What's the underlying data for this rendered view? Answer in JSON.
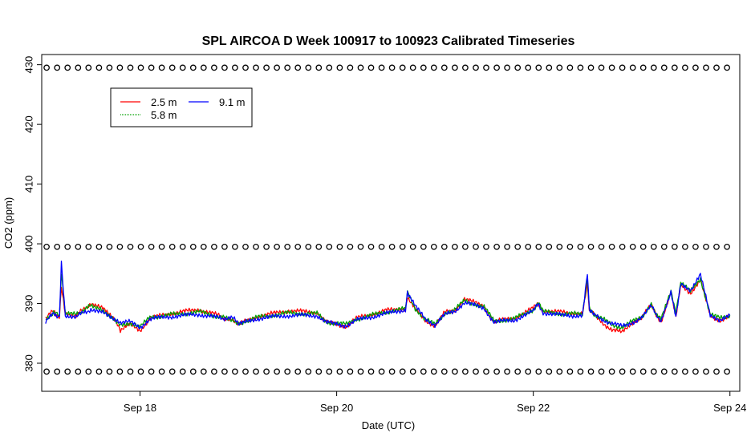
{
  "chart_data": {
    "type": "line",
    "title": "SPL AIRCOA D  Week 100917 to 100923  Calibrated Timeseries",
    "xlabel": "Date (UTC)",
    "ylabel": "CO2 (ppm)",
    "xlim": [
      17.0,
      24.1
    ],
    "ylim": [
      375.3,
      431.7
    ],
    "x_ticks": [
      {
        "value": 18,
        "label": "Sep 18"
      },
      {
        "value": 20,
        "label": "Sep 20"
      },
      {
        "value": 22,
        "label": "Sep 22"
      },
      {
        "value": 24,
        "label": "Sep 24"
      }
    ],
    "y_ticks": [
      {
        "value": 380,
        "label": "380"
      },
      {
        "value": 390,
        "label": "390"
      },
      {
        "value": 400,
        "label": "400"
      },
      {
        "value": 410,
        "label": "410"
      },
      {
        "value": 420,
        "label": "420"
      },
      {
        "value": 430,
        "label": "430"
      }
    ],
    "legend_position": "top-left",
    "series": [
      {
        "name": "2.5 m",
        "color": "#ff0000",
        "x": [
          17.04,
          17.12,
          17.18,
          17.2,
          17.24,
          17.35,
          17.5,
          17.62,
          17.75,
          17.8,
          17.9,
          18.0,
          18.1,
          18.3,
          18.6,
          18.8,
          18.95,
          19.0,
          19.2,
          19.5,
          19.8,
          19.9,
          20.1,
          20.2,
          20.5,
          20.7,
          20.72,
          20.8,
          20.9,
          21.0,
          21.1,
          21.2,
          21.3,
          21.5,
          21.6,
          21.8,
          22.0,
          22.05,
          22.1,
          22.3,
          22.5,
          22.55,
          22.57,
          22.62,
          22.8,
          22.9,
          23.0,
          23.1,
          23.2,
          23.25,
          23.3,
          23.4,
          23.45,
          23.5,
          23.6,
          23.7,
          23.8,
          23.9,
          24.0
        ],
        "y": [
          387.5,
          388.8,
          387.6,
          393.0,
          388.4,
          388.0,
          390.0,
          389.2,
          387.0,
          385.5,
          386.5,
          385.5,
          387.5,
          388.3,
          389.0,
          388.0,
          387.0,
          386.5,
          387.8,
          388.8,
          388.5,
          386.8,
          386.2,
          387.5,
          388.8,
          389.2,
          391.2,
          389.0,
          387.2,
          386.3,
          388.5,
          388.8,
          390.8,
          389.5,
          387.0,
          387.5,
          389.2,
          390.0,
          388.8,
          388.5,
          388.3,
          393.5,
          389.0,
          388.0,
          385.5,
          385.2,
          386.8,
          387.5,
          389.8,
          388.0,
          387.0,
          391.8,
          388.0,
          393.2,
          391.8,
          393.8,
          388.0,
          387.2,
          387.8
        ]
      },
      {
        "name": "5.8 m",
        "color": "#00a000",
        "x": [
          17.04,
          17.12,
          17.18,
          17.2,
          17.24,
          17.35,
          17.5,
          17.62,
          17.75,
          17.8,
          17.9,
          18.0,
          18.1,
          18.3,
          18.6,
          18.8,
          18.95,
          19.0,
          19.2,
          19.5,
          19.8,
          19.9,
          20.1,
          20.2,
          20.5,
          20.7,
          20.72,
          20.8,
          20.9,
          21.0,
          21.1,
          21.2,
          21.3,
          21.5,
          21.6,
          21.8,
          22.0,
          22.05,
          22.1,
          22.3,
          22.5,
          22.55,
          22.57,
          22.62,
          22.8,
          22.9,
          23.0,
          23.1,
          23.2,
          23.25,
          23.3,
          23.4,
          23.45,
          23.5,
          23.6,
          23.7,
          23.8,
          23.9,
          24.0
        ],
        "y": [
          387.3,
          388.6,
          387.9,
          395.0,
          388.2,
          388.2,
          389.6,
          389.0,
          387.3,
          386.4,
          386.8,
          386.0,
          387.7,
          388.1,
          388.6,
          387.8,
          387.3,
          386.7,
          387.7,
          388.4,
          388.3,
          386.9,
          386.5,
          387.4,
          388.6,
          389.1,
          391.8,
          389.2,
          387.3,
          386.5,
          388.4,
          388.9,
          390.5,
          389.4,
          387.1,
          387.4,
          389.0,
          390.2,
          388.6,
          388.3,
          388.2,
          394.0,
          389.2,
          388.2,
          386.5,
          386.0,
          386.9,
          387.7,
          390.0,
          388.3,
          387.3,
          392.2,
          388.2,
          393.5,
          392.0,
          394.2,
          388.2,
          387.5,
          388.0
        ]
      },
      {
        "name": "9.1 m",
        "color": "#0000ff",
        "x": [
          17.04,
          17.12,
          17.18,
          17.2,
          17.24,
          17.35,
          17.5,
          17.62,
          17.75,
          17.8,
          17.9,
          18.0,
          18.1,
          18.3,
          18.6,
          18.8,
          18.95,
          19.0,
          19.2,
          19.5,
          19.8,
          19.9,
          20.1,
          20.2,
          20.5,
          20.7,
          20.72,
          20.8,
          20.9,
          21.0,
          21.1,
          21.2,
          21.3,
          21.5,
          21.6,
          21.8,
          22.0,
          22.05,
          22.1,
          22.3,
          22.5,
          22.55,
          22.57,
          22.62,
          22.8,
          22.9,
          23.0,
          23.1,
          23.2,
          23.25,
          23.3,
          23.4,
          23.45,
          23.5,
          23.6,
          23.7,
          23.8,
          23.9,
          24.0
        ],
        "y": [
          387.0,
          388.3,
          387.8,
          397.0,
          388.0,
          387.9,
          389.0,
          388.5,
          387.0,
          386.8,
          386.9,
          386.0,
          387.4,
          387.8,
          388.2,
          387.6,
          387.5,
          386.5,
          387.5,
          388.0,
          388.0,
          386.8,
          386.3,
          387.2,
          388.3,
          389.0,
          392.0,
          389.5,
          387.5,
          386.4,
          388.1,
          388.7,
          390.2,
          389.2,
          386.9,
          387.2,
          388.7,
          390.0,
          388.5,
          388.0,
          388.0,
          395.3,
          389.0,
          388.0,
          386.6,
          386.2,
          386.8,
          387.5,
          389.6,
          388.0,
          387.2,
          391.8,
          388.0,
          393.3,
          392.3,
          394.8,
          388.0,
          387.3,
          388.0
        ]
      },
      {
        "name": "",
        "color": "#000000",
        "marker": "circle",
        "values": [
          429.5,
          399.5,
          378.6
        ],
        "x_start": 17.05,
        "x_end": 23.97,
        "count": 66
      }
    ]
  }
}
